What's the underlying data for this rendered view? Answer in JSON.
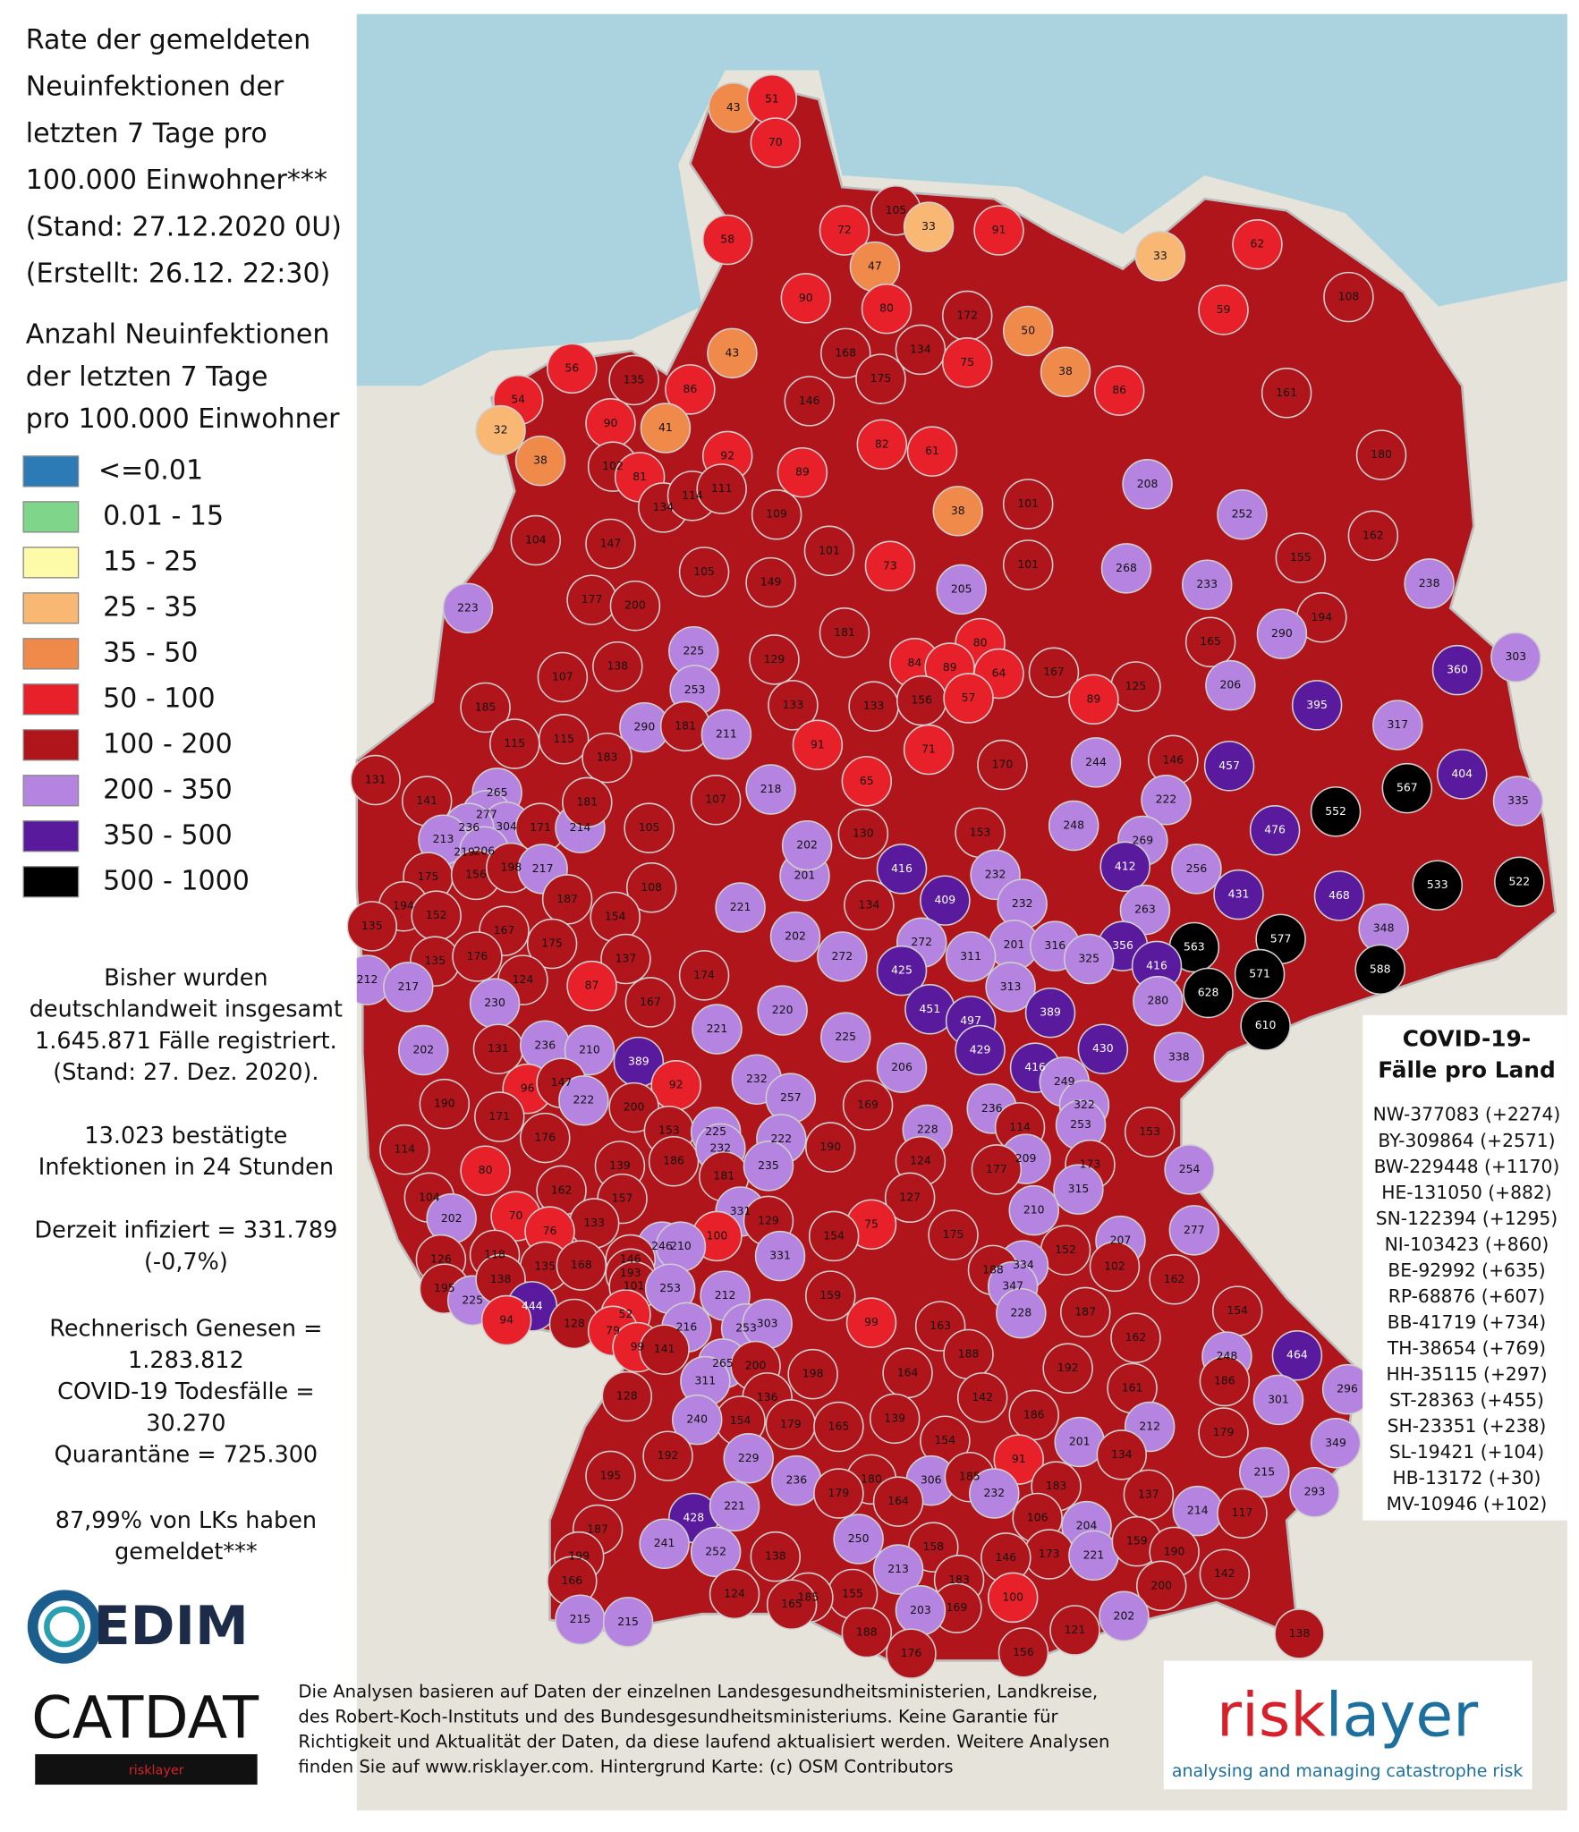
{
  "title": {
    "lines": [
      "Rate der gemeldeten",
      "Neuinfektionen der",
      "letzten 7 Tage pro",
      "100.000 Einwohner***",
      "(Stand: 27.12.2020 0U)",
      "(Erstellt: 26.12. 22:30)"
    ]
  },
  "legend": {
    "title": [
      "Anzahl Neuinfektionen",
      "der letzten 7 Tage",
      "pro 100.000 Einwohner"
    ],
    "items": [
      {
        "label": "<=0.01",
        "color": "#2c7bb6"
      },
      {
        "label": "0.01 - 15",
        "color": "#7fd68a"
      },
      {
        "label": "15 - 25",
        "color": "#fdfaa8"
      },
      {
        "label": "25 - 35",
        "color": "#f9b774"
      },
      {
        "label": "35 - 50",
        "color": "#f08a4b"
      },
      {
        "label": "50 - 100",
        "color": "#e8202a"
      },
      {
        "label": "100 - 200",
        "color": "#b0151c"
      },
      {
        "label": "200 - 350",
        "color": "#b583e0"
      },
      {
        "label": "350 - 500",
        "color": "#5a1a9e"
      },
      {
        "label": "500 - 1000",
        "color": "#000000"
      }
    ]
  },
  "summary": {
    "lines": [
      "Bisher wurden",
      "deutschlandweit insgesamt",
      "1.645.871 Fälle registriert.",
      "(Stand: 27. Dez. 2020).",
      "13.023 bestätigte",
      "Infektionen in 24 Stunden",
      "Derzeit infiziert = 331.789",
      "(-0,7%)",
      "Rechnerisch Genesen =",
      "1.283.812",
      "COVID-19 Todesfälle =",
      "30.270",
      "Quarantäne = 725.300",
      "87,99% von LKs haben",
      "gemeldet***"
    ]
  },
  "by_state": {
    "title": [
      "COVID-19-",
      "Fälle pro Land"
    ],
    "lines": [
      "NW-377083 (+2274)",
      "BY-309864 (+2571)",
      "BW-229448 (+1170)",
      "HE-131050 (+882)",
      "SN-122394 (+1295)",
      "NI-103423 (+860)",
      "BE-92992 (+635)",
      "RP-68876 (+607)",
      "BB-41719 (+734)",
      "TH-38654 (+769)",
      "HH-35115 (+297)",
      "ST-28363 (+455)",
      "SH-23351 (+238)",
      "SL-19421 (+104)",
      "HB-13172 (+30)",
      "MV-10946 (+102)"
    ]
  },
  "footer": {
    "lines": [
      "Die Analysen basieren auf Daten der einzelnen Landesgesundheitsministerien, Landkreise,",
      "des Robert-Koch-Instituts und des Bundesgesundheitsministeriums. Keine Garantie für",
      "Richtigkeit und Aktualität der Daten, da diese laufend aktualisiert werden. Weitere Analysen",
      "finden Sie auf www.risklayer.com. Hintergrund Karte: (c) OSM Contributors"
    ]
  },
  "logos": {
    "edim": "EDIM",
    "catdat": "CATDAT",
    "catdat_sub": "risklayer",
    "risklayer": "risklayer",
    "risklayer_tagline": "analysing and managing catastrophe risk"
  },
  "districts": {
    "values": [
      43,
      51,
      70,
      105,
      58,
      72,
      33,
      91,
      47,
      33,
      62,
      90,
      80,
      172,
      50,
      59,
      108,
      43,
      168,
      134,
      75,
      38,
      86,
      161,
      56,
      135,
      86,
      54,
      146,
      175,
      90,
      41,
      32,
      82,
      61,
      180,
      38,
      102,
      92,
      89,
      81,
      134,
      114,
      111,
      109,
      38,
      101,
      208,
      252,
      162,
      104,
      147,
      101,
      73,
      101,
      268,
      233,
      155,
      238,
      223,
      177,
      200,
      105,
      149,
      205,
      194,
      290,
      181,
      225,
      129,
      80,
      84,
      89,
      64,
      167,
      165,
      360,
      303,
      206,
      395,
      107,
      138,
      253,
      133,
      133,
      156,
      57,
      125,
      89,
      317,
      185,
      115,
      290,
      181,
      211,
      91,
      71,
      170,
      244,
      146,
      457,
      567,
      404,
      335,
      115,
      183,
      131,
      141,
      265,
      218,
      65,
      222,
      552,
      277,
      304,
      171,
      214,
      181,
      107,
      105,
      248,
      236,
      219,
      213,
      206,
      130,
      153,
      269,
      476,
      416,
      232,
      412,
      256,
      201,
      202,
      175,
      156,
      198,
      217,
      533,
      522,
      108,
      409,
      232,
      263,
      431,
      468,
      134,
      187,
      194,
      152,
      154,
      221,
      348,
      135,
      167,
      175,
      202,
      272,
      201,
      316,
      356,
      577,
      563,
      588,
      137,
      174,
      272,
      425,
      311,
      325,
      416,
      571,
      135,
      176,
      124,
      87,
      212,
      217,
      313,
      628,
      451,
      389,
      280,
      230,
      167,
      220,
      497,
      610,
      221,
      225,
      430,
      338,
      131,
      236,
      210,
      389,
      202,
      429,
      416,
      206,
      249,
      232,
      92,
      96,
      147,
      222,
      257,
      200,
      322,
      236,
      190,
      169,
      171,
      153,
      225,
      228,
      114,
      253,
      153,
      176,
      222,
      190,
      114,
      139,
      186,
      232,
      181,
      235,
      124,
      209,
      254,
      80,
      177,
      173,
      162,
      157,
      127,
      315,
      104,
      202,
      70,
      133,
      331,
      129,
      210,
      75,
      76,
      154,
      175,
      207,
      277,
      100,
      331,
      126,
      118,
      246,
      210,
      146,
      152,
      102,
      334,
      135,
      168,
      193,
      188,
      162,
      195,
      225,
      138,
      101,
      253,
      212,
      347,
      159,
      187,
      154,
      444,
      94,
      128,
      52,
      79,
      216,
      253,
      303,
      228,
      99,
      163,
      162,
      99,
      141,
      188,
      248,
      464,
      265,
      200,
      164,
      192,
      186,
      311,
      161,
      296,
      128,
      136,
      198,
      142,
      301,
      154,
      179,
      165,
      139,
      186,
      212,
      240,
      179,
      349,
      201,
      134,
      154,
      192,
      229,
      91,
      236,
      306,
      185,
      180,
      232,
      215,
      293,
      195,
      183,
      179,
      137,
      164,
      214,
      117,
      106,
      428,
      221,
      204,
      187,
      241,
      250,
      158,
      173,
      221,
      159,
      190,
      142,
      252,
      138,
      146,
      213,
      183,
      200,
      199,
      166,
      124,
      155,
      100,
      185,
      165,
      169,
      203,
      202,
      215,
      215,
      121,
      188,
      138,
      156,
      176
    ]
  }
}
